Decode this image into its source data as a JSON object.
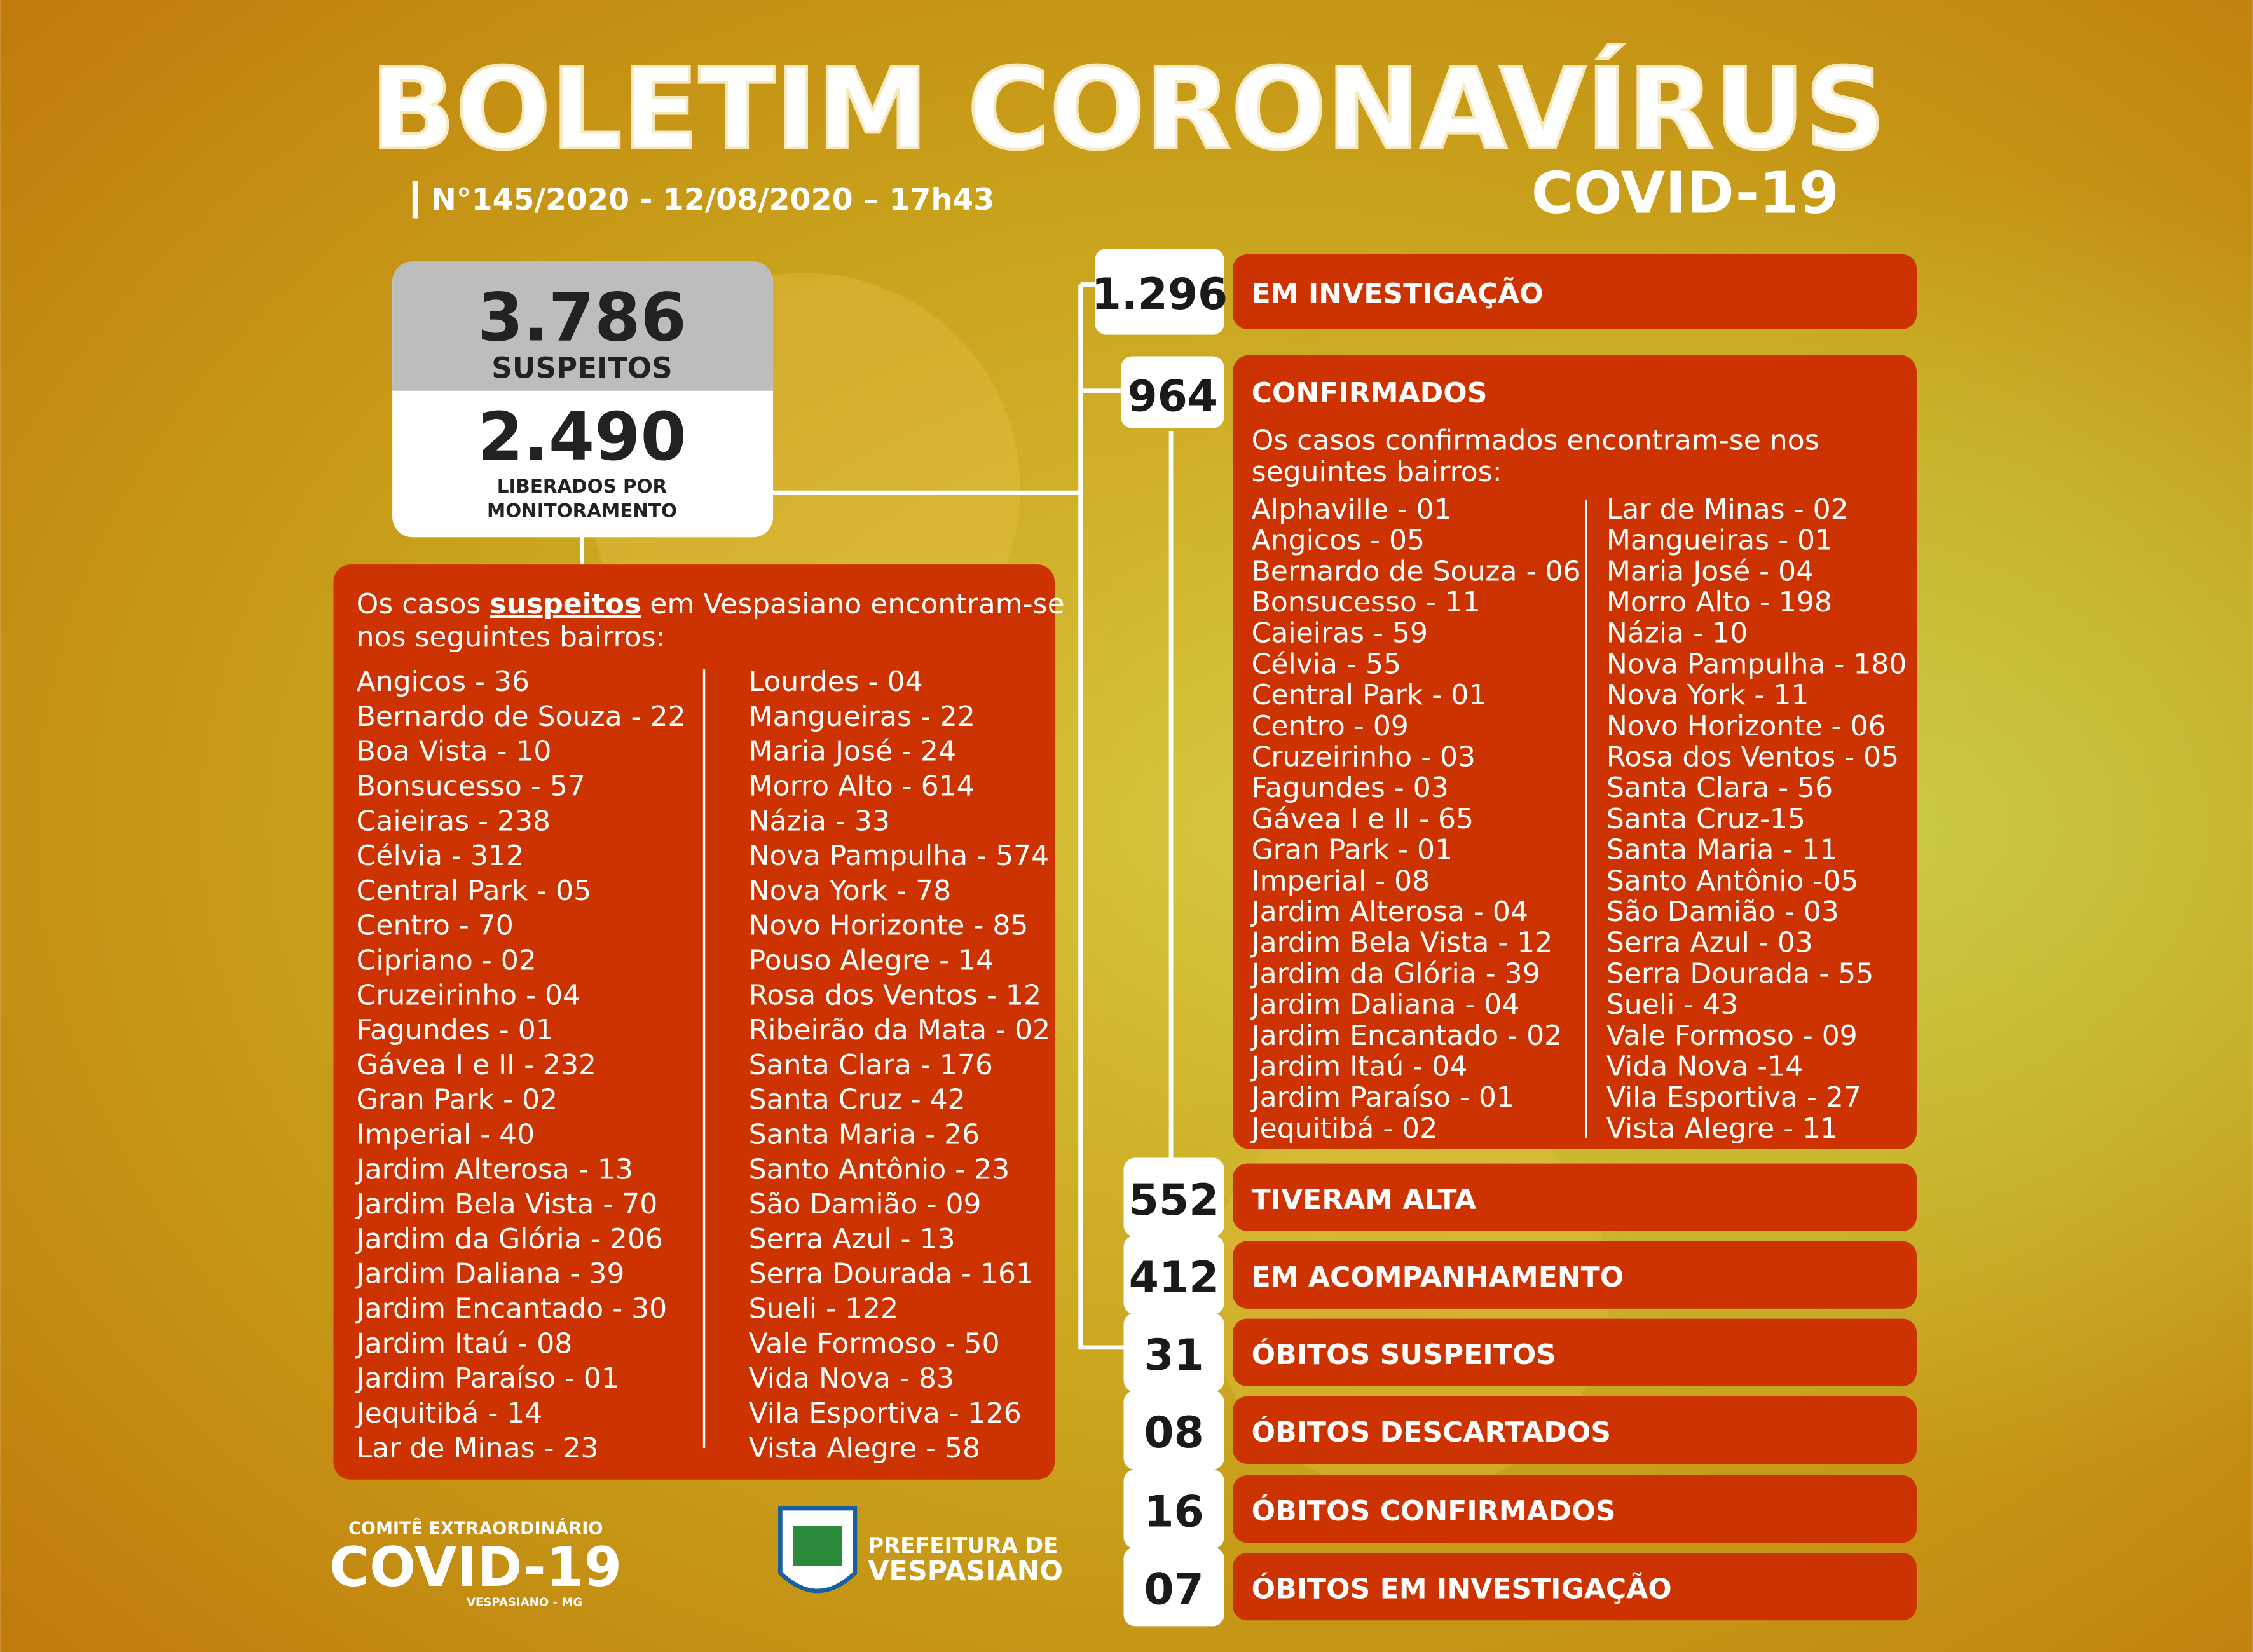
{
  "header": {
    "title": "BOLETIM CORONAVÍRUS",
    "subtitle": "COVID-19",
    "bulletin": "N°145/2020 - 12/08/2020 – 17h43"
  },
  "suspects": {
    "total": "3.786",
    "total_label": "SUSPEITOS",
    "released": "2.490",
    "released_label": [
      "LIBERADOS POR",
      "MONITORAMENTO"
    ],
    "intro": [
      "Os casos",
      "suspeitos",
      "em Vespasiano encontram-se",
      "nos seguintes bairros:"
    ],
    "columns": [
      [
        "Angicos - 36",
        "Bernardo de Souza - 22",
        "Boa Vista - 10",
        "Bonsucesso - 57",
        "Caieiras - 238",
        "Célvia - 312",
        "Central Park - 05",
        "Centro - 70",
        "Cipriano - 02",
        "Cruzeirinho - 04",
        "Fagundes - 01",
        "Gávea I e II - 232",
        "Gran Park - 02",
        "Imperial - 40",
        "Jardim Alterosa - 13",
        "Jardim Bela Vista - 70",
        "Jardim da Glória - 206",
        "Jardim Daliana - 39",
        "Jardim Encantado - 30",
        "Jardim Itaú - 08",
        "Jardim Paraíso - 01",
        "Jequitibá - 14",
        "Lar de Minas - 23"
      ],
      [
        "Lourdes - 04",
        "Mangueiras - 22",
        "Maria José - 24",
        "Morro Alto - 614",
        "Názia - 33",
        "Nova Pampulha - 574",
        "Nova York - 78",
        "Novo Horizonte - 85",
        "Pouso Alegre - 14",
        "Rosa dos Ventos - 12",
        "Ribeirão da Mata - 02",
        "Santa Clara - 176",
        "Santa Cruz - 42",
        "Santa Maria - 26",
        "Santo Antônio - 23",
        "São Damião - 09",
        "Serra Azul - 13",
        "Serra Dourada - 161",
        "Sueli - 122",
        "Vale Formoso - 50",
        "Vida Nova - 83",
        "Vila Esportiva - 126",
        "Vista Alegre - 58"
      ]
    ]
  },
  "stats": [
    {
      "number": "1.296",
      "label": "EM INVESTIGAÇÃO"
    },
    {
      "number": "964",
      "label": "CONFIRMADOS"
    },
    {
      "number": "552",
      "label": "TIVERAM ALTA"
    },
    {
      "number": "412",
      "label": "EM ACOMPANHAMENTO"
    },
    {
      "number": "31",
      "label": "ÓBITOS SUSPEITOS"
    },
    {
      "number": "08",
      "label": "ÓBITOS DESCARTADOS"
    },
    {
      "number": "16",
      "label": "ÓBITOS CONFIRMADOS"
    },
    {
      "number": "07",
      "label": "ÓBITOS EM INVESTIGAÇÃO"
    }
  ],
  "confirmed": {
    "intro": [
      "Os casos confirmados encontram-se nos",
      "seguintes bairros:"
    ],
    "columns": [
      [
        "Alphaville - 01",
        "Angicos - 05",
        "Bernardo de Souza - 06",
        "Bonsucesso - 11",
        "Caieiras - 59",
        "Célvia - 55",
        "Central Park - 01",
        "Centro - 09",
        "Cruzeirinho - 03",
        "Fagundes - 03",
        "Gávea I e II - 65",
        "Gran Park - 01",
        "Imperial - 08",
        "Jardim Alterosa - 04",
        "Jardim Bela Vista - 12",
        "Jardim da Glória - 39",
        "Jardim Daliana - 04",
        "Jardim Encantado - 02",
        "Jardim Itaú - 04",
        "Jardim Paraíso - 01",
        "Jequitibá - 02"
      ],
      [
        "Lar de Minas - 02",
        "Mangueiras - 01",
        "Maria José - 04",
        "Morro Alto - 198",
        "Názia - 10",
        "Nova Pampulha - 180",
        "Nova York - 11",
        "Novo Horizonte - 06",
        "Rosa dos Ventos - 05",
        "Santa Clara - 56",
        "Santa Cruz-15",
        "Santa Maria - 11",
        "Santo Antônio -05",
        "São Damião - 03",
        "Serra Azul - 03",
        "Serra Dourada - 55",
        "Sueli - 43",
        "Vale Formoso - 09",
        "Vida Nova -14",
        "Vila Esportiva - 27",
        "Vista Alegre - 11"
      ]
    ]
  },
  "footer": {
    "committee": "COMITÊ EXTRAORDINÁRIO",
    "committee_logo": "COVID-19",
    "committee_place": "VESPASIANO - MG",
    "city_hall": [
      "PREFEITURA DE",
      "VESPASIANO"
    ]
  }
}
